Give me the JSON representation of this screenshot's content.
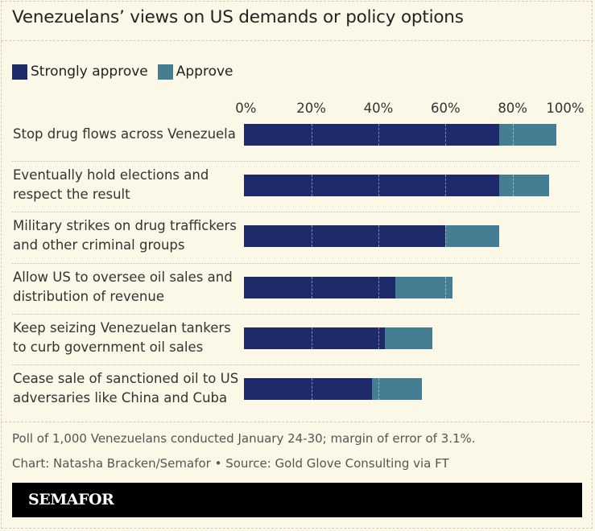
{
  "chart_data": {
    "type": "bar",
    "orientation": "horizontal",
    "stacked": true,
    "title": "Venezuelans’ views on US demands or policy options",
    "categories": [
      [
        "Stop drug flows across Venezuela"
      ],
      [
        "Eventually hold elections and",
        "respect the result"
      ],
      [
        "Military strikes on drug traffickers",
        "and other criminal groups"
      ],
      [
        "Allow US to oversee oil sales and",
        "distribution of revenue"
      ],
      [
        "Keep seizing Venezuelan tankers",
        "to curb government oil sales"
      ],
      [
        "Cease sale of sanctioned oil to US",
        "adversaries like China and Cuba"
      ]
    ],
    "series": [
      {
        "name": "Strongly approve",
        "color": "#1f2a6b",
        "values": [
          76,
          76,
          60,
          45,
          42,
          38
        ]
      },
      {
        "name": "Approve",
        "color": "#457d92",
        "values": [
          17,
          15,
          16,
          17,
          14,
          15
        ]
      }
    ],
    "xlim": [
      0,
      100
    ],
    "ticks": [
      "0%",
      "20%",
      "40%",
      "60%",
      "80%",
      "100%"
    ],
    "tick_values": [
      0,
      20,
      40,
      60,
      80,
      100
    ],
    "grid": true,
    "legend_position": "top-left"
  },
  "notes": {
    "methodology": "Poll of 1,000 Venezuelans conducted January 24-30; margin of error of 3.1%.",
    "credit": "Chart: Natasha Bracken/Semafor • Source: Gold Glove Consulting via FT"
  },
  "brand": "SEMAFOR"
}
